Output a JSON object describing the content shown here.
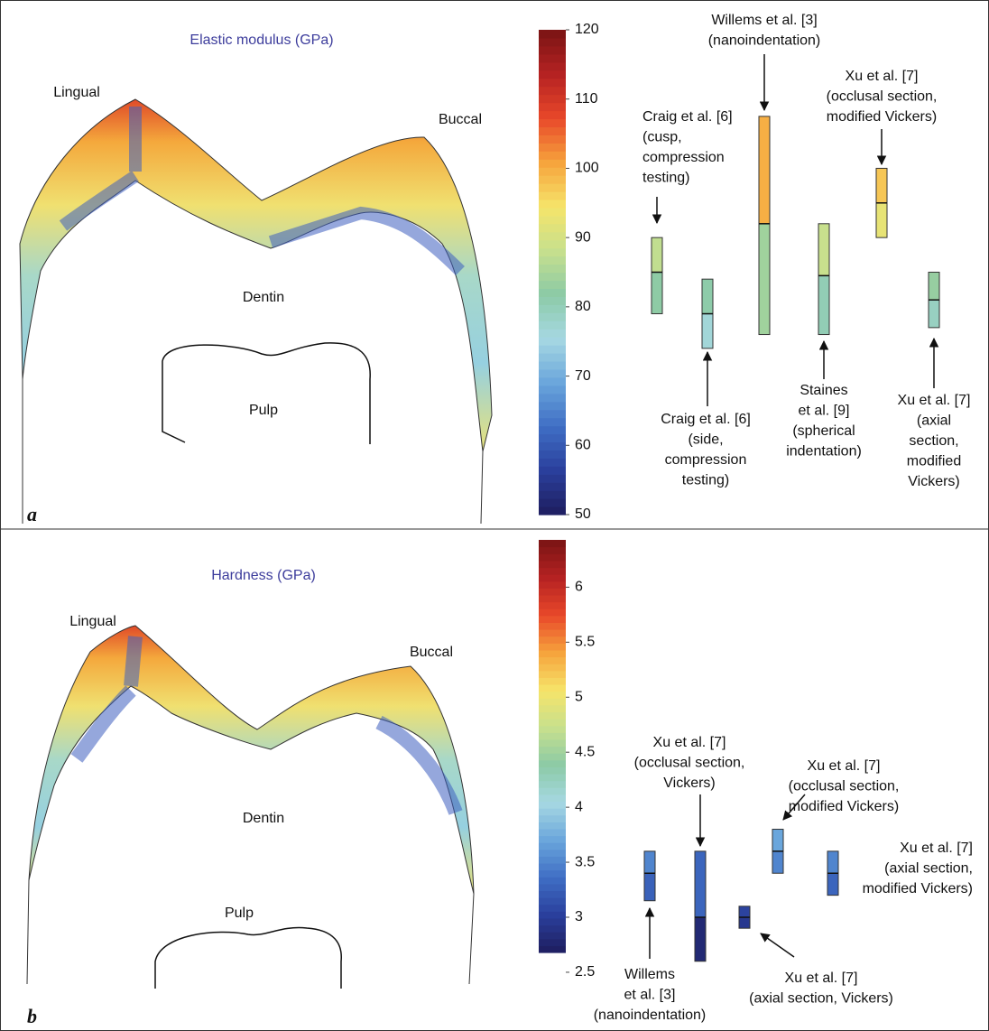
{
  "chart_data": [
    {
      "type": "range",
      "panel": "a",
      "title": "Elastic modulus (GPa)",
      "title_color": "#3d3d9c",
      "tooth_labels": [
        "Lingual",
        "Buccal",
        "Dentin",
        "Pulp"
      ],
      "ylim": [
        50,
        120
      ],
      "yticks": [
        50,
        60,
        70,
        80,
        90,
        100,
        110,
        120
      ],
      "colormap": [
        "#1e1d5e",
        "#2a3f9c",
        "#3f6ec4",
        "#6aa6dc",
        "#a6d8e2",
        "#8ccaa6",
        "#c7e08d",
        "#f6e46a",
        "#f6a33c",
        "#e8482a",
        "#b52222",
        "#7a1414"
      ],
      "series": [
        {
          "name": [
            "Craig et al. [6]",
            "(cusp,",
            "compression",
            "testing)"
          ],
          "low": 79,
          "mid": 85,
          "high": 90
        },
        {
          "name": [
            "Craig et al. [6]",
            "(side,",
            "compression",
            "testing)"
          ],
          "low": 74,
          "mid": 79,
          "high": 84
        },
        {
          "name": [
            "Willems et al. [3]",
            "(nanoindentation)"
          ],
          "low": 76,
          "mid": 92,
          "high": 107.5
        },
        {
          "name": [
            "Staines",
            "et al. [9]",
            "(spherical",
            "indentation)"
          ],
          "low": 76,
          "mid": 84.5,
          "high": 92
        },
        {
          "name": [
            "Xu et al. [7]",
            "(occlusal section,",
            "modified Vickers)"
          ],
          "low": 90,
          "mid": 95,
          "high": 100
        },
        {
          "name": [
            "Xu et al. [7]",
            "(axial",
            "section,",
            "modified",
            "Vickers)"
          ],
          "low": 77,
          "mid": 81,
          "high": 85
        }
      ]
    },
    {
      "type": "range",
      "panel": "b",
      "title": "Hardness (GPa)",
      "title_color": "#3d3d9c",
      "tooth_labels": [
        "Lingual",
        "Buccal",
        "Dentin",
        "Pulp"
      ],
      "ylim": [
        2.68,
        6.43
      ],
      "yticks": [
        2.5,
        3,
        3.5,
        4,
        4.5,
        5,
        5.5,
        6
      ],
      "colormap": [
        "#1e1d5e",
        "#2a3f9c",
        "#3f6ec4",
        "#6aa6dc",
        "#a6d8e2",
        "#8ccaa6",
        "#c7e08d",
        "#f6e46a",
        "#f6a33c",
        "#e8482a",
        "#b52222",
        "#7a1414"
      ],
      "series": [
        {
          "name": [
            "Willems",
            "et al. [3]",
            "(nanoindentation)"
          ],
          "low": 3.15,
          "mid": 3.4,
          "high": 3.6
        },
        {
          "name": [
            "Xu et al. [7]",
            "(occlusal section,",
            "Vickers)"
          ],
          "low": 2.6,
          "mid": 3.0,
          "high": 3.6
        },
        {
          "name": [
            "Xu et al. [7]",
            "(axial section, Vickers)"
          ],
          "low": 2.9,
          "mid": 3.0,
          "high": 3.1
        },
        {
          "name": [
            "Xu et al. [7]",
            "(occlusal section,",
            "modified Vickers)"
          ],
          "low": 3.4,
          "mid": 3.6,
          "high": 3.8
        },
        {
          "name": [
            "Xu et al. [7]",
            "(axial section,",
            "modified Vickers)"
          ],
          "low": 3.2,
          "mid": 3.4,
          "high": 3.6
        }
      ]
    }
  ]
}
